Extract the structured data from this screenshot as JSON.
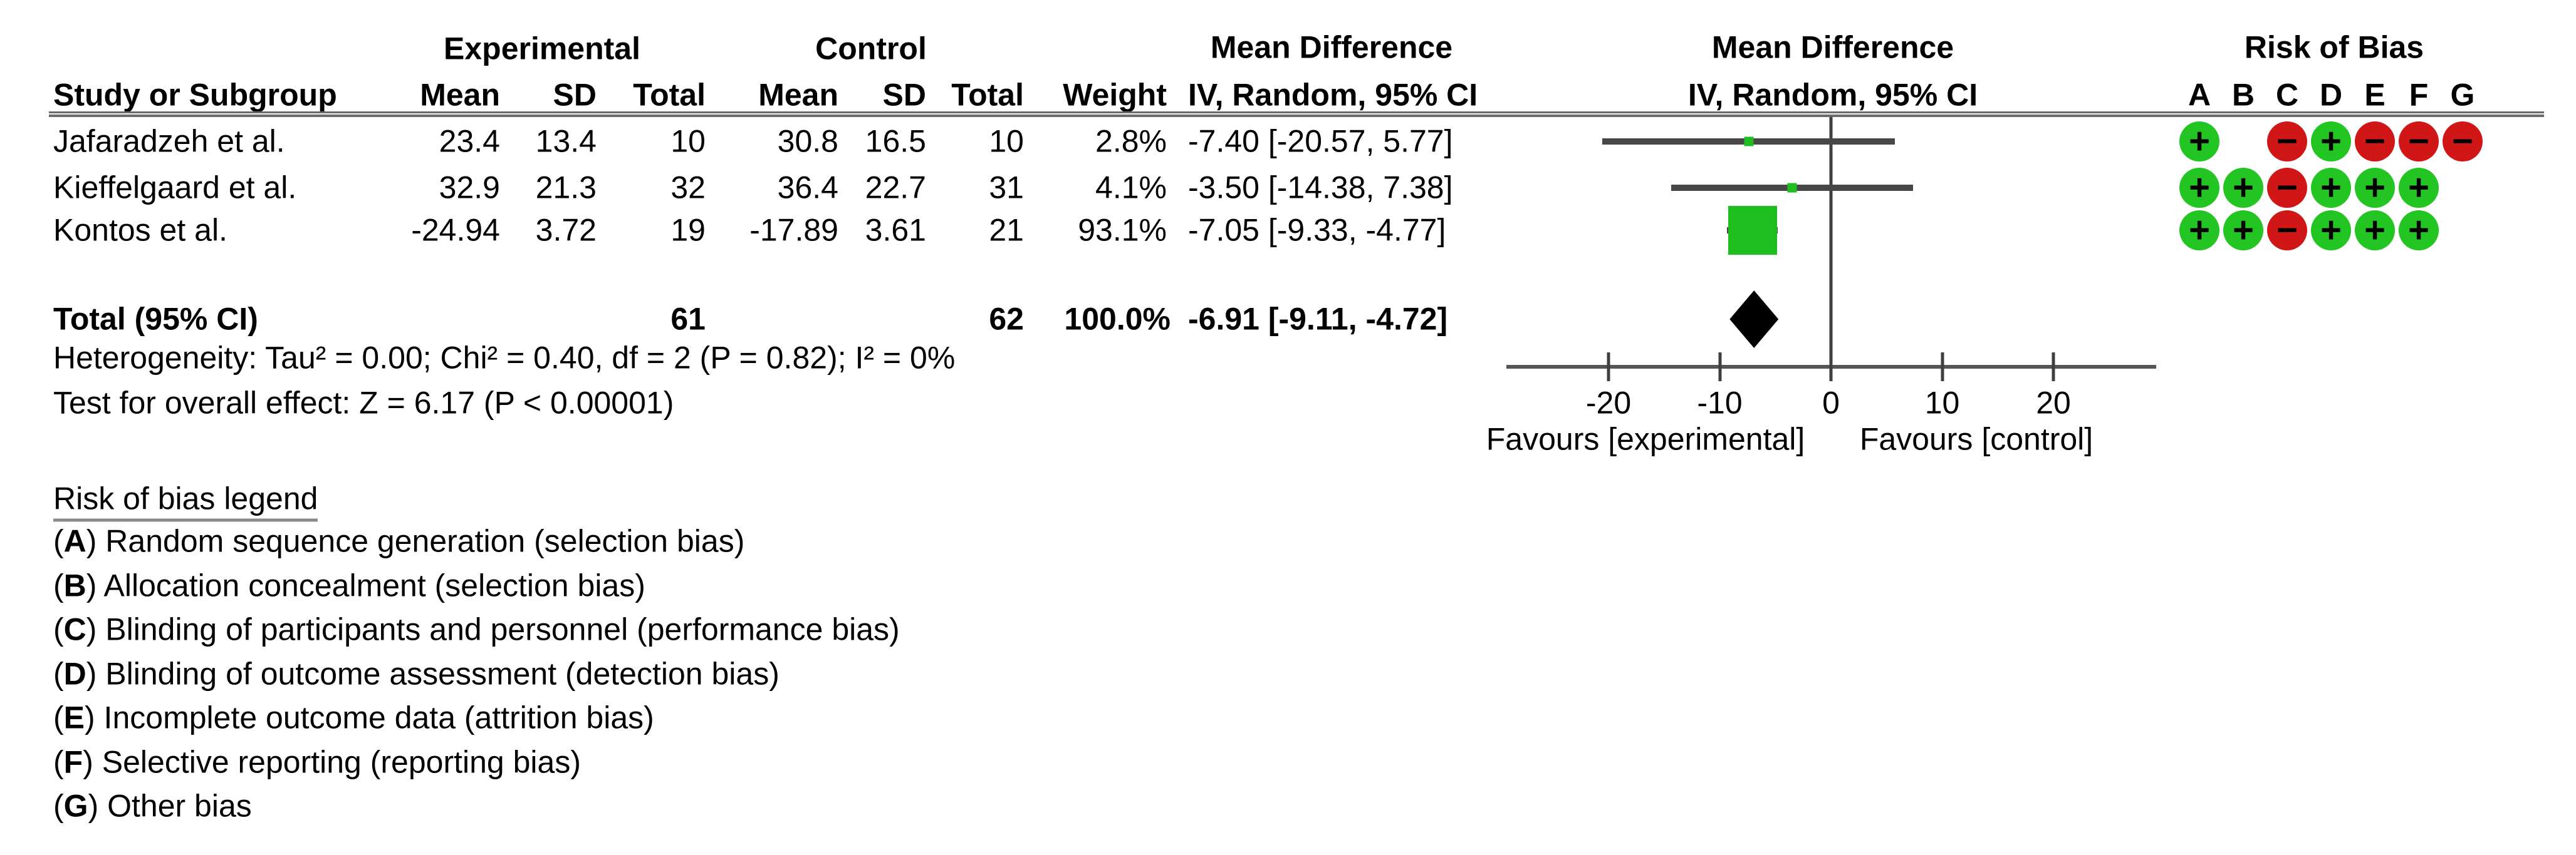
{
  "headers": {
    "experimental": "Experimental",
    "control": "Control",
    "mean_difference_text_col": "Mean Difference",
    "mean_difference_plot_col": "Mean Difference",
    "risk_of_bias": "Risk of Bias",
    "study_or_subgroup": "Study or Subgroup",
    "mean_e": "Mean",
    "sd_e": "SD",
    "total_e": "Total",
    "mean_c": "Mean",
    "sd_c": "SD",
    "total_c": "Total",
    "weight": "Weight",
    "ci_method_text_col": "IV, Random, 95% CI",
    "ci_method_plot_col": "IV, Random, 95% CI",
    "rob_letters": [
      "A",
      "B",
      "C",
      "D",
      "E",
      "F",
      "G"
    ]
  },
  "rows": [
    {
      "study": "Jafaradzeh et al.",
      "mean_e": "23.4",
      "sd_e": "13.4",
      "total_e": "10",
      "mean_c": "30.8",
      "sd_c": "16.5",
      "total_c": "10",
      "weight": "2.8%",
      "ci_text": "-7.40 [-20.57, 5.77]",
      "rob": [
        "+",
        "",
        "-",
        "+",
        "-",
        "-",
        "-"
      ]
    },
    {
      "study": "Kieffelgaard et al.",
      "mean_e": "32.9",
      "sd_e": "21.3",
      "total_e": "32",
      "mean_c": "36.4",
      "sd_c": "22.7",
      "total_c": "31",
      "weight": "4.1%",
      "ci_text": "-3.50 [-14.38, 7.38]",
      "rob": [
        "+",
        "+",
        "-",
        "+",
        "+",
        "+",
        ""
      ]
    },
    {
      "study": "Kontos et al.",
      "mean_e": "-24.94",
      "sd_e": "3.72",
      "total_e": "19",
      "mean_c": "-17.89",
      "sd_c": "3.61",
      "total_c": "21",
      "weight": "93.1%",
      "ci_text": "-7.05 [-9.33, -4.77]",
      "rob": [
        "+",
        "+",
        "-",
        "+",
        "+",
        "+",
        ""
      ]
    }
  ],
  "total_row": {
    "label": "Total (95% CI)",
    "total_e": "61",
    "total_c": "62",
    "weight": "100.0%",
    "ci_text": "-6.91 [-9.11, -4.72]"
  },
  "footnotes": {
    "heterogeneity": "Heterogeneity: Tau² = 0.00; Chi² = 0.40, df = 2 (P = 0.82); I² = 0%",
    "overall_effect": "Test for overall effect: Z = 6.17 (P < 0.00001)"
  },
  "axis": {
    "tick_labels": [
      "-20",
      "-10",
      "0",
      "10",
      "20"
    ],
    "favours_left": "Favours [experimental]",
    "favours_right": "Favours [control]"
  },
  "rob_legend": {
    "heading": "Risk of bias legend",
    "items": [
      {
        "letter": "A",
        "text": "Random sequence generation (selection bias)"
      },
      {
        "letter": "B",
        "text": "Allocation concealment (selection bias)"
      },
      {
        "letter": "C",
        "text": "Blinding of participants and personnel (performance bias)"
      },
      {
        "letter": "D",
        "text": "Blinding of outcome assessment (detection bias)"
      },
      {
        "letter": "E",
        "text": "Incomplete outcome data (attrition bias)"
      },
      {
        "letter": "F",
        "text": "Selective reporting (reporting bias)"
      },
      {
        "letter": "G",
        "text": "Other bias"
      }
    ]
  },
  "colors": {
    "marker_green": "#1fbe1f",
    "rob_green": "#22c522",
    "rob_red": "#d01616",
    "ci_line": "#474747",
    "diamond_black": "#000000"
  },
  "chart_data": {
    "type": "forest",
    "effect_measure": "Mean Difference, IV, Random, 95% CI",
    "x_axis": {
      "ticks": [
        -20,
        -10,
        0,
        10,
        20
      ],
      "range": [
        -29.2,
        29.2
      ],
      "label_left": "Favours [experimental]",
      "label_right": "Favours [control]"
    },
    "studies": [
      {
        "name": "Jafaradzeh et al.",
        "estimate": -7.4,
        "ci_lower": -20.57,
        "ci_upper": 5.77,
        "weight_pct": 2.8
      },
      {
        "name": "Kieffelgaard et al.",
        "estimate": -3.5,
        "ci_lower": -14.38,
        "ci_upper": 7.38,
        "weight_pct": 4.1
      },
      {
        "name": "Kontos et al.",
        "estimate": -7.05,
        "ci_lower": -9.33,
        "ci_upper": -4.77,
        "weight_pct": 93.1
      }
    ],
    "total": {
      "estimate": -6.91,
      "ci_lower": -9.11,
      "ci_upper": -4.72,
      "weight_pct": 100.0
    },
    "heterogeneity": {
      "tau2": 0.0,
      "chi2": 0.4,
      "df": 2,
      "p_het": 0.82,
      "i2_pct": 0
    },
    "overall_effect": {
      "z": 6.17,
      "p": "< 0.00001"
    }
  }
}
